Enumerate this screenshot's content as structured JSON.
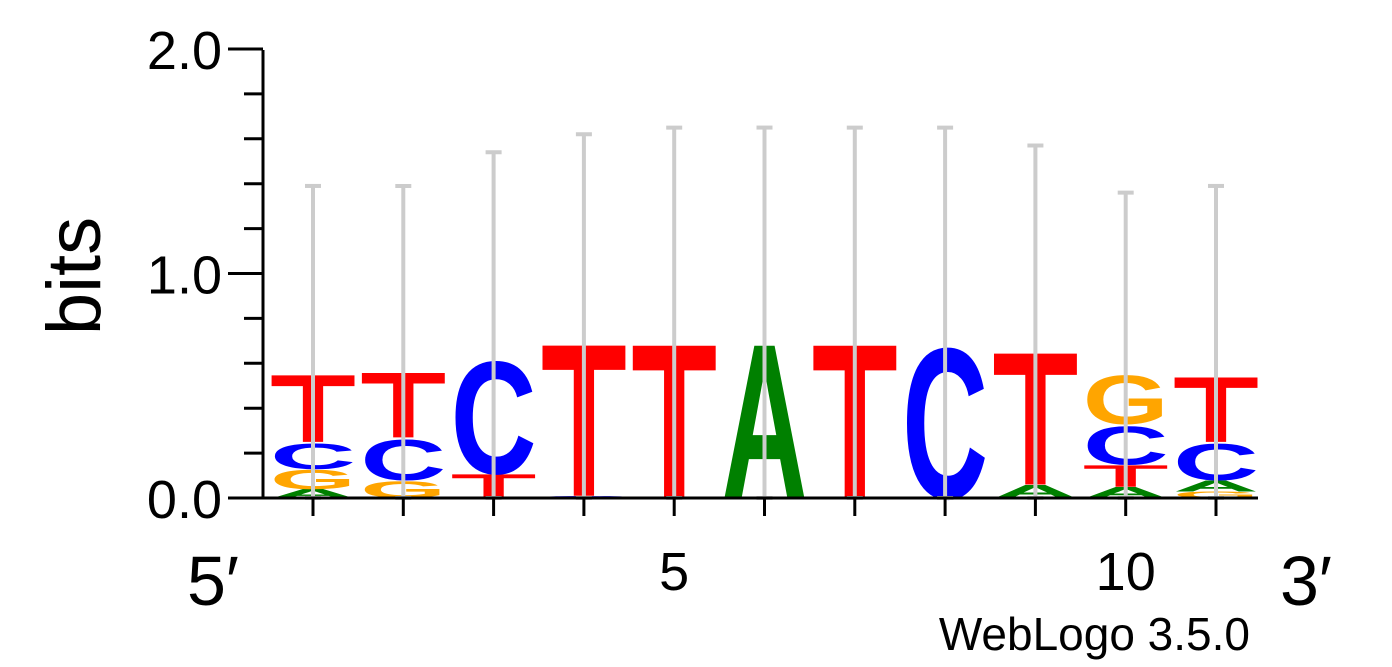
{
  "chart_data": {
    "type": "sequence-logo",
    "ylabel": "bits",
    "ylim": [
      0,
      2
    ],
    "yticks": [
      "0.0",
      "1.0",
      "2.0"
    ],
    "x_end_labels": {
      "left": "5′",
      "right": "3′"
    },
    "xticks": [
      {
        "position": 5,
        "label": "5"
      },
      {
        "position": 10,
        "label": "10"
      }
    ],
    "credit": "WebLogo 3.5.0",
    "colors": {
      "A": "#008000",
      "C": "#0000ff",
      "G": "#ffa500",
      "T": "#ff0000",
      "errorbar": "#cccccc"
    },
    "positions": [
      {
        "pos": 1,
        "stack": [
          [
            "A",
            0.04
          ],
          [
            "G",
            0.09
          ],
          [
            "C",
            0.12
          ],
          [
            "T",
            0.31
          ]
        ],
        "err": [
          0.65,
          1.39
        ]
      },
      {
        "pos": 2,
        "stack": [
          [
            "G",
            0.08
          ],
          [
            "C",
            0.19
          ],
          [
            "T",
            0.3
          ]
        ],
        "err": [
          0.65,
          1.39
        ]
      },
      {
        "pos": 3,
        "stack": [
          [
            "T",
            0.11
          ],
          [
            "C",
            0.53
          ]
        ],
        "err": [
          0.74,
          1.54
        ]
      },
      {
        "pos": 4,
        "stack": [
          [
            "C",
            0.01
          ],
          [
            "T",
            0.7
          ]
        ],
        "err": [
          0.79,
          1.62
        ]
      },
      {
        "pos": 5,
        "stack": [
          [
            "T",
            0.71
          ]
        ],
        "err": [
          0.81,
          1.65
        ]
      },
      {
        "pos": 6,
        "stack": [
          [
            "A",
            0.71
          ]
        ],
        "err": [
          0.81,
          1.65
        ]
      },
      {
        "pos": 7,
        "stack": [
          [
            "T",
            0.71
          ]
        ],
        "err": [
          0.81,
          1.65
        ]
      },
      {
        "pos": 8,
        "stack": [
          [
            "C",
            0.71
          ]
        ],
        "err": [
          0.81,
          1.65
        ]
      },
      {
        "pos": 9,
        "stack": [
          [
            "A",
            0.06
          ],
          [
            "T",
            0.61
          ]
        ],
        "err": [
          0.73,
          1.57
        ]
      },
      {
        "pos": 10,
        "stack": [
          [
            "A",
            0.05
          ],
          [
            "T",
            0.1
          ],
          [
            "C",
            0.18
          ],
          [
            "G",
            0.23
          ]
        ],
        "err": [
          0.63,
          1.36
        ]
      },
      {
        "pos": 11,
        "stack": [
          [
            "G",
            0.03
          ],
          [
            "A",
            0.05
          ],
          [
            "C",
            0.17
          ],
          [
            "T",
            0.3
          ]
        ],
        "err": [
          0.65,
          1.39
        ]
      }
    ]
  }
}
